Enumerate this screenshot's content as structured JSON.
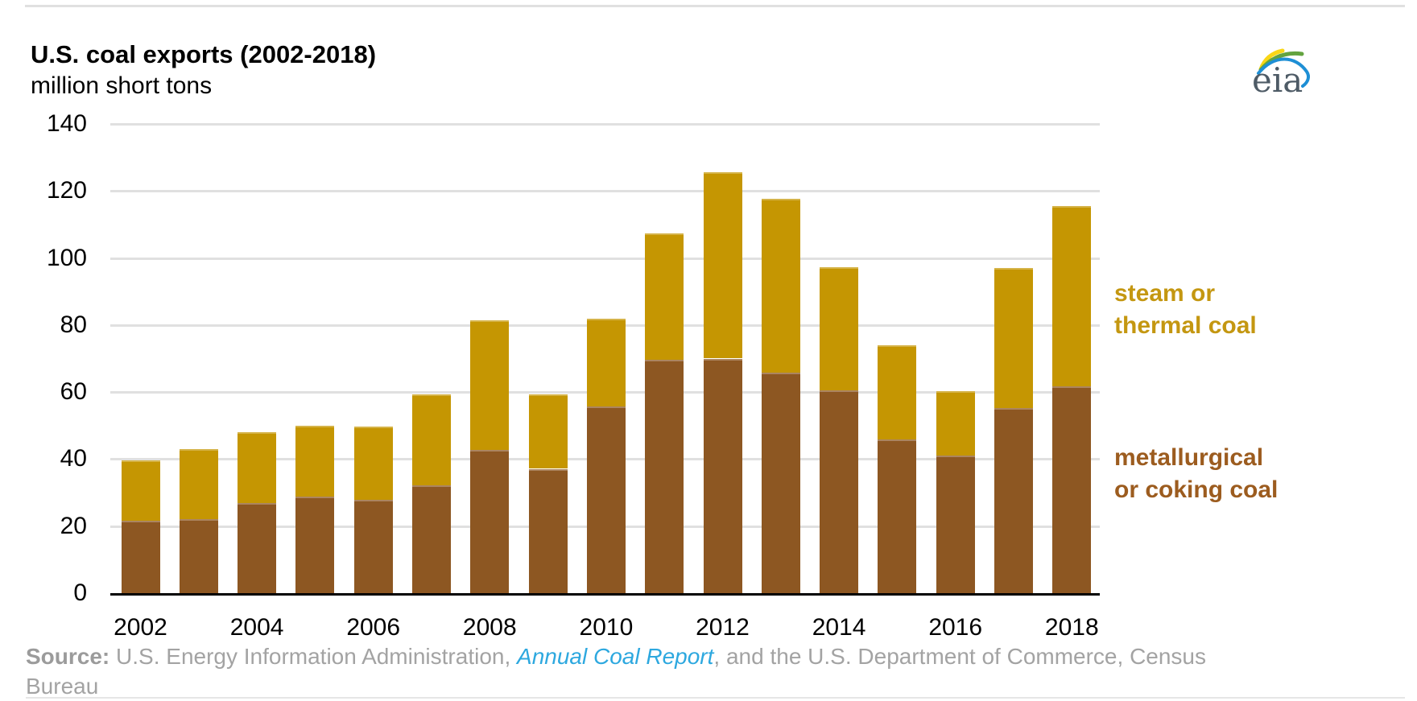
{
  "page": {
    "title": "U.S. coal exports (2002-2018)",
    "subtitle": "million short tons"
  },
  "logo": {
    "text": "eia"
  },
  "chart_data": {
    "type": "bar",
    "stacked": true,
    "title": "U.S. coal exports (2002-2018)",
    "ylabel": "million short tons",
    "xlabel": "",
    "ylim": [
      0,
      140
    ],
    "yticks": [
      0,
      20,
      40,
      60,
      80,
      100,
      120,
      140
    ],
    "grid": true,
    "legend_position": "right",
    "categories": [
      "2002",
      "2003",
      "2004",
      "2005",
      "2006",
      "2007",
      "2008",
      "2009",
      "2010",
      "2011",
      "2012",
      "2013",
      "2014",
      "2015",
      "2016",
      "2017",
      "2018"
    ],
    "xticks": [
      "2002",
      "2004",
      "2006",
      "2008",
      "2010",
      "2012",
      "2014",
      "2016",
      "2018"
    ],
    "series": [
      {
        "name": "metallurgical or coking coal",
        "color": "#8d5722",
        "values": [
          21.7,
          22.0,
          27.0,
          28.7,
          27.8,
          32.2,
          42.7,
          37.1,
          55.7,
          69.6,
          70.0,
          65.7,
          60.4,
          45.9,
          41.0,
          55.3,
          61.8
        ]
      },
      {
        "name": "steam or thermal coal",
        "color": "#c59602",
        "values": [
          17.9,
          21.0,
          21.0,
          21.2,
          21.8,
          27.0,
          38.8,
          22.1,
          26.1,
          37.7,
          55.7,
          52.0,
          36.9,
          28.1,
          19.3,
          41.7,
          53.8
        ]
      }
    ]
  },
  "legend": {
    "steam": {
      "line1": "steam or",
      "line2": "thermal coal",
      "color": "#c49711"
    },
    "met": {
      "line1": "metallurgical",
      "line2": "or coking coal",
      "color": "#9c5c1f"
    }
  },
  "source": {
    "prefix": "Source:",
    "text1": " U.S. Energy Information Administration, ",
    "link": "Annual Coal Report",
    "text2": ", and the U.S. Department of Commerce, Census",
    "text3": "Bureau"
  },
  "colors": {
    "gridline": "#e0e0e0",
    "axis": "#000000",
    "source_text": "#a3a3a3",
    "source_link": "#2da8df"
  }
}
